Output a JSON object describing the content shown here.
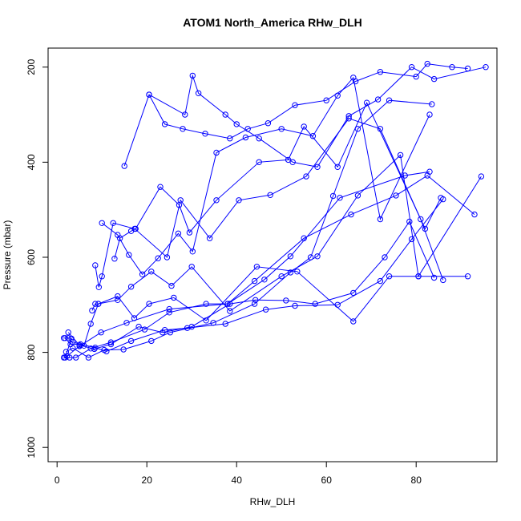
{
  "chart_data": {
    "type": "line",
    "title": "ATOM1 North_America RHw_DLH",
    "xlabel": "RHw_DLH",
    "ylabel": "Pressure (mbar)",
    "xlim": [
      -2,
      98
    ],
    "ylim": [
      1030,
      160
    ],
    "y_reversed": true,
    "x_ticks": [
      0,
      20,
      40,
      60,
      80
    ],
    "y_ticks": [
      200,
      400,
      600,
      800,
      1000
    ],
    "grid": false,
    "legend": "none",
    "series_color": "#0000ff",
    "series": [
      {
        "x": [
          1.5,
          2.5,
          3.2,
          1.8,
          2.2,
          5.0,
          9.8,
          15.5,
          25.0,
          38.0,
          46.2,
          52.0,
          63.0,
          77.5,
          83.0
        ],
        "y": [
          770,
          770,
          771,
          811,
          808,
          787,
          758,
          738,
          709,
          698,
          647,
          598,
          475,
          428,
          420
        ]
      },
      {
        "x": [
          1.5,
          2.8,
          4.2,
          7.5,
          12.0,
          19.5,
          25.0,
          33.2,
          38.0,
          44.0,
          55.0,
          65.5,
          75.5,
          82.5,
          93.0
        ],
        "y": [
          811,
          811,
          811,
          792,
          779,
          752,
          716,
          698,
          698,
          650,
          560,
          510,
          470,
          428,
          510
        ]
      },
      {
        "x": [
          2.0,
          3.5,
          7.0,
          10.5,
          14.8,
          21.0,
          25.2,
          34.8,
          44.0,
          52.0,
          56.5,
          61.5,
          67.0,
          74.0,
          83.5
        ],
        "y": [
          799,
          791,
          811,
          795,
          794,
          776,
          758,
          738,
          698,
          632,
          600,
          471,
          330,
          270,
          278
        ]
      },
      {
        "x": [
          1.8,
          3.0,
          5.2,
          8.5,
          11.0,
          16.5,
          24.0,
          29.0,
          37.5,
          46.5,
          53.0,
          62.5,
          72.0,
          79.0,
          86.0
        ],
        "y": [
          770,
          783,
          783,
          790,
          798,
          776,
          753,
          749,
          740,
          710,
          702,
          700,
          650,
          562,
          478
        ]
      },
      {
        "x": [
          2.5,
          5.0,
          8.3,
          12.0,
          18.2,
          23.5,
          30.0,
          38.5,
          44.2,
          51.0,
          57.5,
          66.0,
          73.0,
          78.5,
          84.0
        ],
        "y": [
          758,
          785,
          793,
          783,
          746,
          758,
          746,
          698,
          690,
          691,
          698,
          675,
          600,
          525,
          643
        ]
      },
      {
        "x": [
          3.5,
          6.0,
          7.5,
          9.2,
          13.5,
          17.2,
          20.5,
          26.0,
          33.2,
          44.5,
          53.5,
          66.0,
          74.0,
          80.5,
          91.5
        ],
        "y": [
          778,
          786,
          740,
          698,
          682,
          728,
          698,
          685,
          733,
          620,
          630,
          735,
          640,
          640,
          640
        ]
      },
      {
        "x": [
          7.8,
          8.5,
          9.2,
          13.5,
          16.5,
          21.0,
          25.5,
          30.0,
          38.5,
          50.0,
          58.0,
          67.0,
          76.5,
          80.5,
          94.5
        ],
        "y": [
          712,
          698,
          698,
          690,
          662,
          630,
          660,
          620,
          713,
          640,
          598,
          470,
          385,
          640,
          430
        ]
      },
      {
        "x": [
          8.5,
          9.3,
          10.0,
          12.5,
          17.3,
          24.5,
          27.5,
          34.0,
          40.5,
          47.5,
          55.5,
          65.0,
          72.0,
          81.0,
          86.0
        ],
        "y": [
          617,
          663,
          640,
          528,
          540,
          600,
          480,
          560,
          480,
          469,
          430,
          308,
          330,
          520,
          648
        ]
      },
      {
        "x": [
          12.8,
          14.0,
          16.5,
          17.5,
          23.0,
          27.2,
          29.5,
          35.5,
          45.0,
          51.5,
          55.0,
          62.5,
          69.0,
          82.0,
          85.5
        ],
        "y": [
          603,
          560,
          545,
          540,
          452,
          490,
          548,
          480,
          400,
          395,
          325,
          410,
          275,
          540,
          475
        ]
      },
      {
        "x": [
          10.0,
          13.5,
          16.0,
          19.0,
          22.5,
          27.0,
          30.2,
          35.5,
          42.0,
          50.0,
          57.0,
          62.5,
          66.0,
          72.0,
          83.0
        ],
        "y": [
          528,
          553,
          595,
          636,
          602,
          550,
          588,
          380,
          348,
          330,
          345,
          260,
          222,
          520,
          300
        ]
      },
      {
        "x": [
          15.0,
          20.5,
          28.5,
          30.2,
          31.5,
          37.5,
          40.0,
          45.0,
          52.5,
          58.0,
          65.0,
          71.5,
          79.0,
          84.0,
          95.5
        ],
        "y": [
          408,
          258,
          300,
          218,
          255,
          300,
          320,
          350,
          400,
          410,
          303,
          268,
          200,
          225,
          200
        ]
      },
      {
        "x": [
          20.5,
          24.0,
          28.0,
          33.0,
          38.5,
          42.5,
          47.0,
          53.0,
          60.0,
          66.5,
          72.0,
          80.0,
          82.5,
          88.0,
          91.5
        ],
        "y": [
          258,
          320,
          330,
          340,
          350,
          330,
          318,
          280,
          270,
          230,
          210,
          220,
          193,
          200,
          203
        ]
      }
    ]
  }
}
